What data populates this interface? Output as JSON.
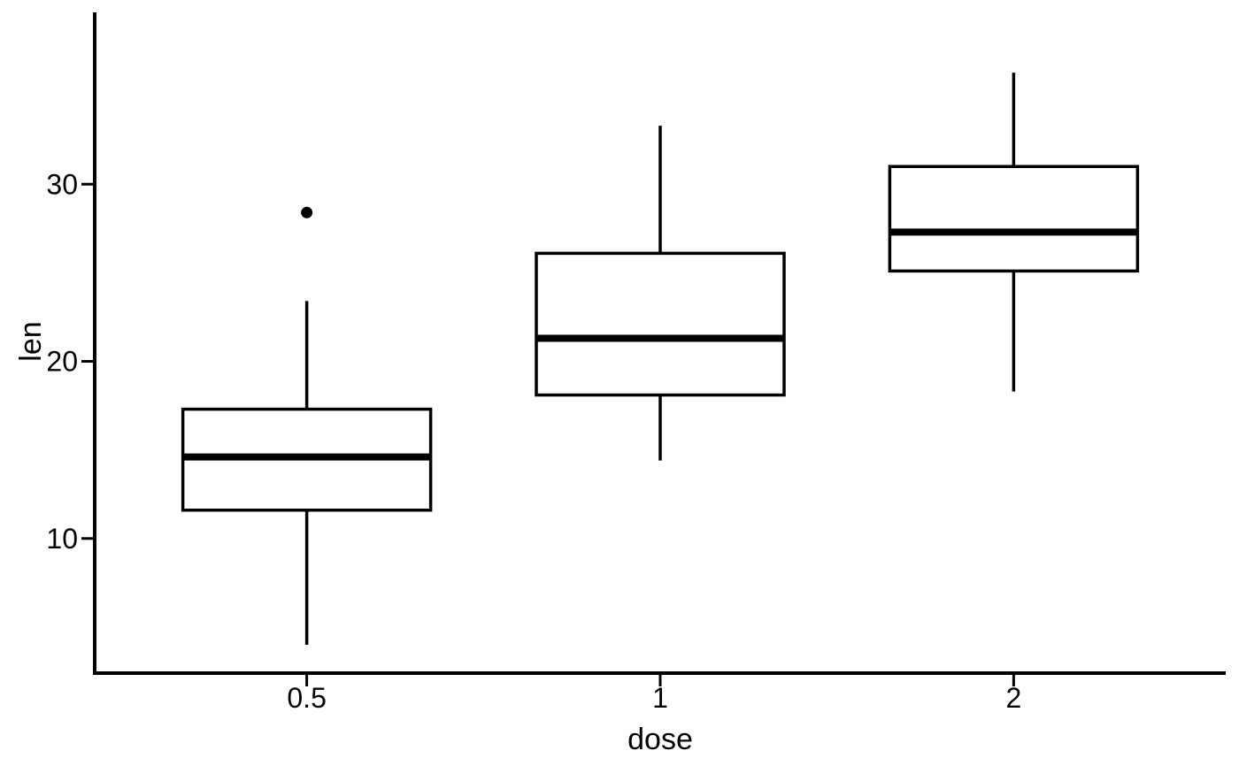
{
  "chart_data": {
    "type": "boxplot",
    "title": "",
    "xlabel": "dose",
    "ylabel": "len",
    "categories": [
      "0.5",
      "1",
      "2"
    ],
    "y_ticks": [
      10,
      20,
      30
    ],
    "ylim": [
      2.4,
      39.7
    ],
    "grid": false,
    "legend": false,
    "series": [
      {
        "category": "0.5",
        "lower_whisker": 4.0,
        "q1": 11.6,
        "median": 14.6,
        "q3": 17.3,
        "upper_whisker": 23.4,
        "outliers": [
          28.4
        ]
      },
      {
        "category": "1",
        "lower_whisker": 14.4,
        "q1": 18.1,
        "median": 21.3,
        "q3": 26.1,
        "upper_whisker": 33.3,
        "outliers": []
      },
      {
        "category": "2",
        "lower_whisker": 18.3,
        "q1": 25.1,
        "median": 27.3,
        "q3": 31.0,
        "upper_whisker": 36.3,
        "outliers": []
      }
    ],
    "colors": {
      "line": "#000000",
      "box_fill": "#ffffff",
      "text": "#000000",
      "background": "#ffffff"
    }
  }
}
